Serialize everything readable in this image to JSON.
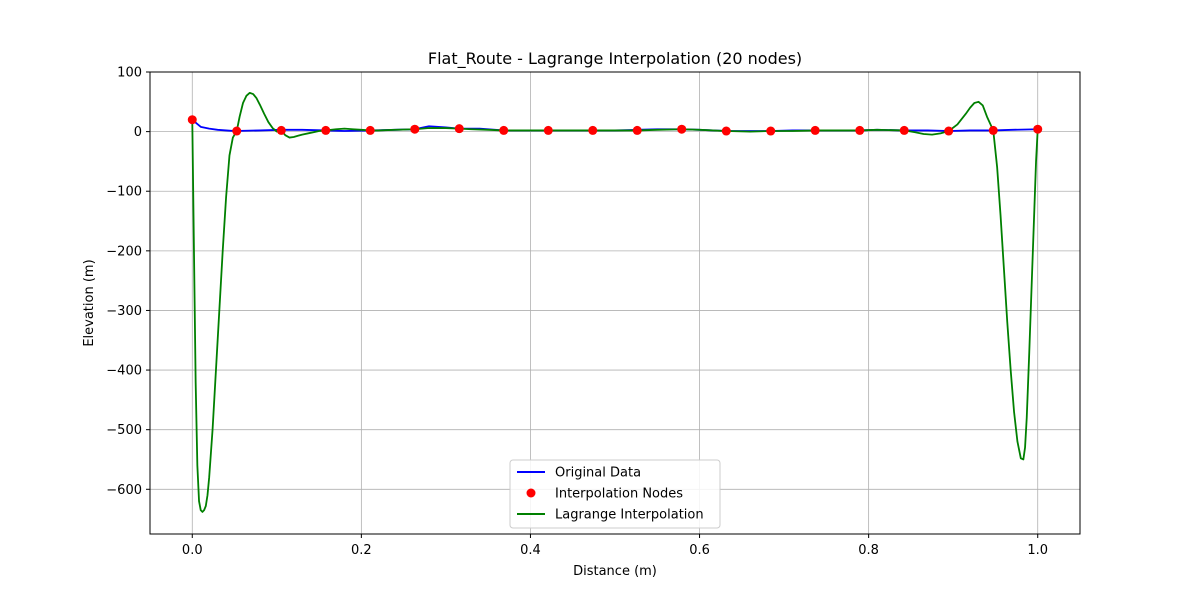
{
  "chart_data": {
    "type": "line",
    "title": "Flat_Route - Lagrange Interpolation (20 nodes)",
    "xlabel": "Distance (m)",
    "ylabel": "Elevation (m)",
    "xlim": [
      -0.05,
      1.05
    ],
    "ylim": [
      -675,
      100
    ],
    "xticks": [
      0.0,
      0.2,
      0.4,
      0.6,
      0.8,
      1.0
    ],
    "xtick_labels": [
      "0.0",
      "0.2",
      "0.4",
      "0.6",
      "0.8",
      "1.0"
    ],
    "yticks": [
      100,
      0,
      -100,
      -200,
      -300,
      -400,
      -500,
      -600
    ],
    "ytick_labels": [
      "100",
      "0",
      "−100",
      "−200",
      "−300",
      "−400",
      "−500",
      "−600"
    ],
    "grid": true,
    "legend_position": "lower-center",
    "series": [
      {
        "name": "Original Data",
        "kind": "line",
        "color": "#0000ff",
        "x": [
          0.0,
          0.005,
          0.01,
          0.02,
          0.03,
          0.04,
          0.05,
          0.08,
          0.105,
          0.13,
          0.158,
          0.18,
          0.211,
          0.24,
          0.263,
          0.28,
          0.3,
          0.316,
          0.34,
          0.368,
          0.4,
          0.421,
          0.45,
          0.474,
          0.5,
          0.526,
          0.55,
          0.579,
          0.6,
          0.632,
          0.66,
          0.684,
          0.71,
          0.737,
          0.76,
          0.789,
          0.81,
          0.842,
          0.87,
          0.895,
          0.92,
          0.947,
          0.97,
          1.0
        ],
        "y": [
          20,
          14,
          8,
          5,
          3,
          2,
          1,
          2,
          3,
          3,
          2,
          1,
          2,
          3,
          4,
          9,
          7,
          5,
          5,
          2,
          2,
          2,
          2,
          2,
          2,
          3,
          4,
          4,
          3,
          1,
          1,
          1,
          2,
          2,
          2,
          2,
          3,
          2,
          2,
          1,
          2,
          2,
          3,
          4
        ]
      },
      {
        "name": "Interpolation Nodes",
        "kind": "scatter",
        "color": "#ff0000",
        "x": [
          0.0,
          0.0526,
          0.1053,
          0.1579,
          0.2105,
          0.2632,
          0.3158,
          0.3684,
          0.4211,
          0.4737,
          0.5263,
          0.5789,
          0.6316,
          0.6842,
          0.7368,
          0.7895,
          0.8421,
          0.8947,
          0.9474,
          1.0
        ],
        "y": [
          20,
          1,
          2,
          2,
          2,
          4,
          5,
          2,
          2,
          2,
          2,
          4,
          1,
          1,
          2,
          2,
          2,
          1,
          2,
          4
        ]
      },
      {
        "name": "Lagrange Interpolation",
        "kind": "line",
        "color": "#008000",
        "x": [
          0.0,
          0.002,
          0.004,
          0.006,
          0.008,
          0.01,
          0.012,
          0.014,
          0.016,
          0.018,
          0.02,
          0.024,
          0.028,
          0.032,
          0.036,
          0.04,
          0.044,
          0.048,
          0.0526,
          0.056,
          0.06,
          0.064,
          0.068,
          0.072,
          0.076,
          0.08,
          0.085,
          0.09,
          0.095,
          0.1,
          0.1053,
          0.11,
          0.115,
          0.12,
          0.125,
          0.13,
          0.14,
          0.15,
          0.1579,
          0.17,
          0.18,
          0.19,
          0.2,
          0.2105,
          0.22,
          0.24,
          0.2632,
          0.28,
          0.3,
          0.3158,
          0.33,
          0.35,
          0.3684,
          0.4,
          0.4211,
          0.45,
          0.4737,
          0.5,
          0.5263,
          0.55,
          0.5789,
          0.6,
          0.6316,
          0.66,
          0.6842,
          0.71,
          0.7368,
          0.76,
          0.7895,
          0.81,
          0.8421,
          0.855,
          0.865,
          0.875,
          0.885,
          0.8947,
          0.905,
          0.915,
          0.92,
          0.925,
          0.93,
          0.935,
          0.94,
          0.9474,
          0.952,
          0.956,
          0.96,
          0.964,
          0.968,
          0.972,
          0.976,
          0.98,
          0.983,
          0.985,
          0.987,
          0.99,
          0.993,
          0.996,
          0.998,
          1.0
        ],
        "y": [
          20,
          -200,
          -420,
          -560,
          -620,
          -635,
          -638,
          -635,
          -628,
          -610,
          -580,
          -500,
          -400,
          -300,
          -200,
          -110,
          -40,
          -10,
          1,
          25,
          48,
          60,
          65,
          63,
          56,
          45,
          30,
          16,
          6,
          0,
          2,
          -6,
          -10,
          -9,
          -7,
          -5,
          -2,
          1,
          2,
          4,
          5,
          4,
          3,
          2,
          2,
          3,
          4,
          6,
          6,
          5,
          4,
          3,
          2,
          2,
          2,
          2,
          2,
          2,
          2,
          3,
          4,
          3,
          1,
          0,
          1,
          1,
          2,
          2,
          2,
          3,
          2,
          -1,
          -4,
          -5,
          -3,
          1,
          12,
          30,
          40,
          48,
          50,
          44,
          25,
          2,
          -60,
          -140,
          -230,
          -320,
          -400,
          -470,
          -520,
          -548,
          -550,
          -530,
          -480,
          -370,
          -250,
          -130,
          -50,
          4
        ]
      }
    ]
  }
}
